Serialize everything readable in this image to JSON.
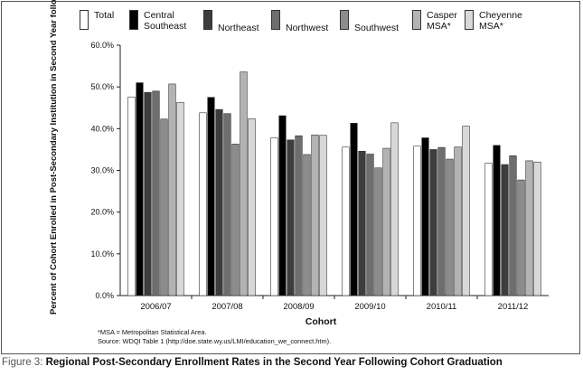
{
  "chart_data": {
    "type": "bar",
    "title": "",
    "xlabel": "Cohort",
    "ylabel": "Percent of Cohort Enrolled in Post-Secondary Institution in Second Year following Cohort Graduation",
    "ylim": [
      0,
      60
    ],
    "yticks": [
      "0.0%",
      "10.0%",
      "20.0%",
      "30.0%",
      "40.0%",
      "50.0%",
      "60.0%"
    ],
    "categories": [
      "2006/07",
      "2007/08",
      "2008/09",
      "2009/10",
      "2010/11",
      "2011/12"
    ],
    "legend_position": "top",
    "grid": false,
    "series": [
      {
        "name": "Total",
        "color": "#ffffff",
        "values": [
          47.6,
          43.8,
          37.8,
          35.6,
          35.8,
          31.7
        ]
      },
      {
        "name": "Central Southeast",
        "color": "#000000",
        "values": [
          51.0,
          47.5,
          43.1,
          41.3,
          37.8,
          36.0
        ]
      },
      {
        "name": "Northeast",
        "color": "#3d3d3d",
        "values": [
          48.7,
          44.6,
          37.3,
          34.6,
          35.0,
          31.4
        ]
      },
      {
        "name": "Northwest",
        "color": "#6e6e6e",
        "values": [
          49.0,
          43.6,
          38.3,
          33.9,
          35.5,
          33.5
        ]
      },
      {
        "name": "Southwest",
        "color": "#8c8c8c",
        "values": [
          42.3,
          36.3,
          33.8,
          30.6,
          32.7,
          27.7
        ]
      },
      {
        "name": "Casper MSA*",
        "color": "#b3b3b3",
        "values": [
          50.7,
          53.6,
          38.5,
          35.3,
          35.6,
          32.3
        ]
      },
      {
        "name": "Cheyenne MSA*",
        "color": "#d8d8d8",
        "values": [
          46.3,
          42.4,
          38.4,
          41.4,
          40.6,
          32.0
        ]
      }
    ]
  },
  "legend": [
    {
      "label": "Total"
    },
    {
      "label": "Central\nSoutheast"
    },
    {
      "label": "Northeast"
    },
    {
      "label": "Northwest"
    },
    {
      "label": "Southwest"
    },
    {
      "label": "Casper\nMSA*"
    },
    {
      "label": "Cheyenne\nMSA*"
    }
  ],
  "notes": {
    "msa": "*MSA = Metropolitan Statistical Area.",
    "source": "Source: WDQI Table 1 (http://doe.state.wy.us/LMI/education_we_connect.htm)."
  },
  "caption": {
    "lead": "Figure 3:",
    "title": "Regional Post-Secondary Enrollment Rates in the Second Year Following Cohort Graduation"
  }
}
